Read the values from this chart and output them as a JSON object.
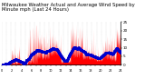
{
  "title": "Milwaukee Weather Actual and Average Wind Speed by Minute mph (Last 24 Hours)",
  "background_color": "#ffffff",
  "plot_bg_color": "#ffffff",
  "bar_color": "#ff0000",
  "line_color": "#0000cc",
  "grid_color": "#bbbbbb",
  "num_points": 1440,
  "ylim": [
    0,
    25
  ],
  "yticks": [
    0,
    5,
    10,
    15,
    20,
    25
  ],
  "ytick_labels": [
    "0",
    "5",
    "10",
    "15",
    "20",
    "25"
  ],
  "title_fontsize": 3.8,
  "tick_fontsize": 3.0,
  "fig_width": 1.6,
  "fig_height": 0.87,
  "dpi": 100
}
